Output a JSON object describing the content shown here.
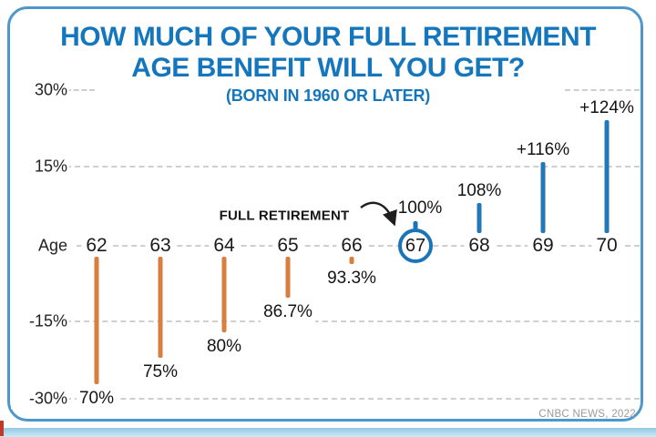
{
  "page": {
    "title_line1": "HOW MUCH OF YOUR FULL RETIREMENT",
    "title_line2": "AGE BENEFIT WILL YOU GET?",
    "subtitle": "(BORN IN 1960 OR LATER)",
    "source": "CNBC NEWS, 2022"
  },
  "chart_data": {
    "type": "bar",
    "title": "HOW MUCH OF YOUR FULL RETIREMENT AGE BENEFIT WILL YOU GET?",
    "subtitle": "(BORN IN 1960 OR LATER)",
    "x_axis_label": "Age",
    "annotation": "FULL RETIREMENT",
    "full_retirement_age": "67",
    "categories": [
      "62",
      "63",
      "64",
      "65",
      "66",
      "67",
      "68",
      "69",
      "70"
    ],
    "values": [
      70,
      75,
      80,
      86.7,
      93.3,
      100,
      108,
      116,
      124
    ],
    "value_labels": [
      "70%",
      "75%",
      "80%",
      "86.7%",
      "93.3%",
      "100%",
      "108%",
      "+116%",
      "+124%"
    ],
    "baseline_pct": 100,
    "y_ticks": [
      {
        "label": "30%",
        "pct": 30
      },
      {
        "label": "15%",
        "pct": 15
      },
      {
        "label": "Age",
        "pct": 0
      },
      {
        "label": "-15%",
        "pct": -15
      },
      {
        "label": "-30%",
        "pct": -30
      }
    ],
    "ylim_offset_pct": [
      -30,
      30
    ],
    "grid": "dashed horizontal",
    "legend": "none",
    "colors": {
      "below_full_bar": "#D97E3C",
      "above_full_bar": "#2277B7",
      "full_circle": "#1C74B8",
      "title_blue": "#1477BD",
      "grid_gray": "#CFCFCF",
      "card_border": "#4D97CB",
      "text_dark": "#1b1b1b",
      "credit_gray": "#9B9B9B"
    },
    "source": "CNBC NEWS, 2022"
  }
}
